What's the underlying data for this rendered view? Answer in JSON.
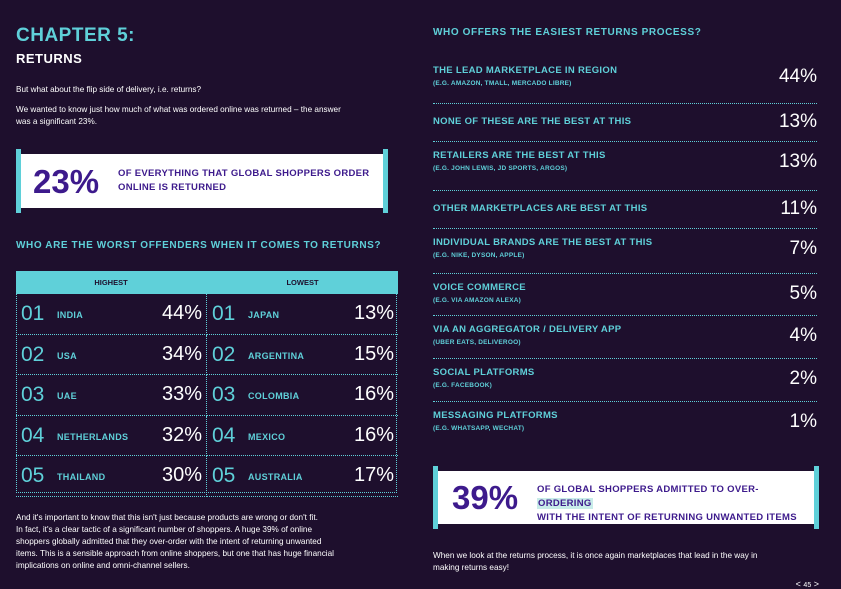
{
  "header": {
    "chapter": "CHAPTER 5:",
    "title": "RETURNS"
  },
  "intro": {
    "p1": "But what about the flip side of delivery, i.e. returns?",
    "p2a": "We wanted to know just how much of what was ordered online was returned – the answer",
    "p2b": "was a significant 23%."
  },
  "stat1": {
    "value": "23%",
    "line1": "OF EVERYTHING THAT GLOBAL SHOPPERS ORDER",
    "line2": "ONLINE IS RETURNED"
  },
  "offenders": {
    "heading": "WHO ARE THE WORST OFFENDERS WHEN IT COMES TO RETURNS?",
    "col_highest": "HIGHEST",
    "col_lowest": "LOWEST",
    "rows": [
      {
        "h_rank": "01",
        "h_country": "INDIA",
        "h_pct": "44%",
        "l_rank": "01",
        "l_country": "JAPAN",
        "l_pct": "13%"
      },
      {
        "h_rank": "02",
        "h_country": "USA",
        "h_pct": "34%",
        "l_rank": "02",
        "l_country": "ARGENTINA",
        "l_pct": "15%"
      },
      {
        "h_rank": "03",
        "h_country": "UAE",
        "h_pct": "33%",
        "l_rank": "03",
        "l_country": "COLOMBIA",
        "l_pct": "16%"
      },
      {
        "h_rank": "04",
        "h_country": "NETHERLANDS",
        "h_pct": "32%",
        "l_rank": "04",
        "l_country": "MEXICO",
        "l_pct": "16%"
      },
      {
        "h_rank": "05",
        "h_country": "THAILAND",
        "h_pct": "30%",
        "l_rank": "05",
        "l_country": "AUSTRALIA",
        "l_pct": "17%"
      }
    ]
  },
  "outro_left": [
    "And it's important to know that this isn't just because products are wrong or don't fit.",
    "In fact, it's a clear tactic of a significant number of shoppers. A huge 39% of online",
    "shoppers globally admitted that they over-order with the intent of returning unwanted",
    "items. This is a sensible approach from online shoppers, but one that has huge financial",
    "implications on online and omni-channel sellers."
  ],
  "returns": {
    "heading": "WHO OFFERS THE EASIEST RETURNS PROCESS?",
    "rows": [
      {
        "label": "THE LEAD MARKETPLACE IN REGION",
        "sub": "(E.G. AMAZON, TMALL, MERCADO LIBRE)",
        "value": "44%"
      },
      {
        "label": "NONE OF THESE ARE THE BEST AT THIS",
        "sub": "",
        "value": "13%"
      },
      {
        "label": "RETAILERS ARE THE BEST AT THIS",
        "sub": "(E.G. JOHN LEWIS, JD SPORTS, ARGOS)",
        "value": "13%"
      },
      {
        "label": "OTHER MARKETPLACES ARE BEST AT THIS",
        "sub": "",
        "value": "11%"
      },
      {
        "label": "INDIVIDUAL BRANDS ARE THE BEST AT THIS",
        "sub": "(E.G. NIKE, DYSON, APPLE)",
        "value": "7%"
      },
      {
        "label": "VOICE COMMERCE",
        "sub": "(E.G. VIA AMAZON ALEXA)",
        "value": "5%"
      },
      {
        "label": "VIA AN AGGREGATOR / DELIVERY APP",
        "sub": "(UBER EATS, DELIVEROO)",
        "value": "4%"
      },
      {
        "label": "SOCIAL PLATFORMS",
        "sub": "(E.G. FACEBOOK)",
        "value": "2%"
      },
      {
        "label": "MESSAGING PLATFORMS",
        "sub": "(E.G. WHATSAPP, WECHAT)",
        "value": "1%"
      }
    ]
  },
  "stat2": {
    "value": "39%",
    "line1a": "OF GLOBAL SHOPPERS ADMITTED TO OVER-",
    "line1b": "ORDERING",
    "line2": "WITH THE INTENT OF RETURNING UNWANTED ITEMS"
  },
  "outro_right": [
    "When we look at the returns process, it is once again marketplaces that lead in the way in",
    "making returns easy!"
  ],
  "pager": {
    "prev": "<",
    "next": ">",
    "page": "45"
  },
  "colors": {
    "background": "#1e0f2d",
    "accent": "#5fd0d9",
    "purple": "#3d1a8c"
  }
}
